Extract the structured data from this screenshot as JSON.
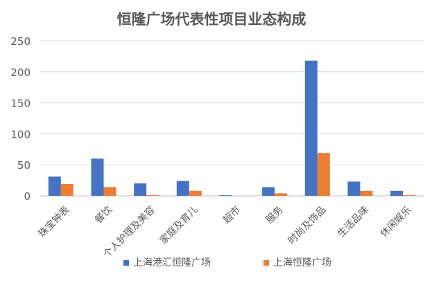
{
  "chart_data": {
    "type": "bar",
    "title": "恒隆广场代表性项目业态构成",
    "xlabel": "",
    "ylabel": "",
    "ylim": [
      0,
      250
    ],
    "yticks": [
      0,
      50,
      100,
      150,
      200,
      250
    ],
    "grid": true,
    "legend_position": "bottom",
    "categories": [
      "珠宝钟表",
      "餐饮",
      "个人护理及美容",
      "家庭及育儿",
      "超市",
      "服务",
      "时尚及饰品",
      "生活品味",
      "休闲娱乐"
    ],
    "series": [
      {
        "name": "上海港汇恒隆广场",
        "color": "#4472C4",
        "values": [
          31,
          60,
          20,
          24,
          1,
          14,
          218,
          23,
          8
        ]
      },
      {
        "name": "上海恒隆广场",
        "color": "#ED7D31",
        "values": [
          19,
          14,
          1,
          8,
          0,
          4,
          69,
          8,
          1
        ]
      }
    ]
  }
}
